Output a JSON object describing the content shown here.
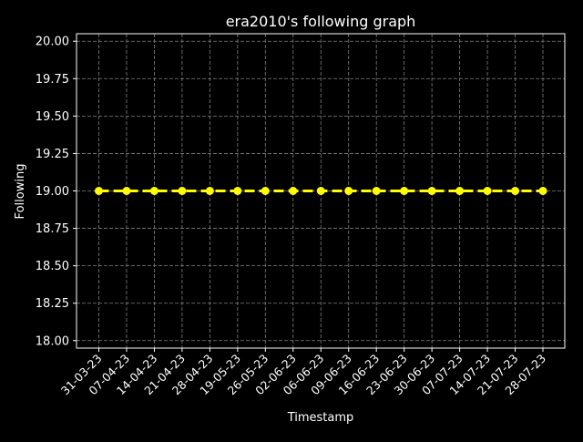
{
  "chart_data": {
    "type": "line",
    "title": "era2010's following graph",
    "xlabel": "Timestamp",
    "ylabel": "Following",
    "categories": [
      "31-03-23",
      "07-04-23",
      "14-04-23",
      "21-04-23",
      "28-04-23",
      "19-05-23",
      "26-05-23",
      "02-06-23",
      "06-06-23",
      "09-06-23",
      "16-06-23",
      "23-06-23",
      "30-06-23",
      "07-07-23",
      "14-07-23",
      "21-07-23",
      "28-07-23"
    ],
    "series": [
      {
        "values": [
          19,
          19,
          19,
          19,
          19,
          19,
          19,
          19,
          19,
          19,
          19,
          19,
          19,
          19,
          19,
          19,
          19
        ]
      }
    ],
    "ylim": [
      17.95,
      20.05
    ],
    "yticks": [
      "18.00",
      "18.25",
      "18.50",
      "18.75",
      "19.00",
      "19.25",
      "19.50",
      "19.75",
      "20.00"
    ],
    "grid": true,
    "line_style": "dashed",
    "line_color": "#ffff00",
    "marker_color": "#ffff00",
    "background": "#000000",
    "axis_color": "#ffffff",
    "grid_color": "#808080"
  }
}
